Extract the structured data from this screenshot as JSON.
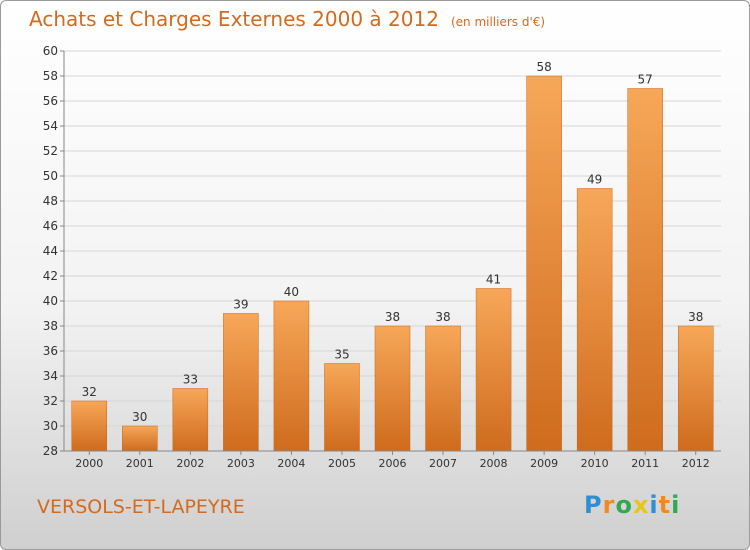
{
  "title": "Achats et Charges Externes 2000 à 2012",
  "unit": "(en milliers d'€)",
  "place": "VERSOLS-ET-LAPEYRE",
  "brand": {
    "letters": [
      "P",
      "r",
      "o",
      "x",
      "i",
      "t",
      "i"
    ],
    "colors": [
      "#2f8fd4",
      "#f08a1e",
      "#33a852",
      "#e8c51a",
      "#2f8fd4",
      "#f08a1e",
      "#33a852"
    ]
  },
  "colors": {
    "bar_top": "#f7a758",
    "bar_bottom": "#cf6b1d",
    "accent": "#d46a1e"
  },
  "chart_data": {
    "type": "bar",
    "categories": [
      "2000",
      "2001",
      "2002",
      "2003",
      "2004",
      "2005",
      "2006",
      "2007",
      "2008",
      "2009",
      "2010",
      "2011",
      "2012"
    ],
    "values": [
      32,
      30,
      33,
      39,
      40,
      35,
      38,
      38,
      41,
      58,
      49,
      57,
      38
    ],
    "ylim": [
      28,
      60
    ],
    "ytick_step": 2,
    "grid": true
  }
}
